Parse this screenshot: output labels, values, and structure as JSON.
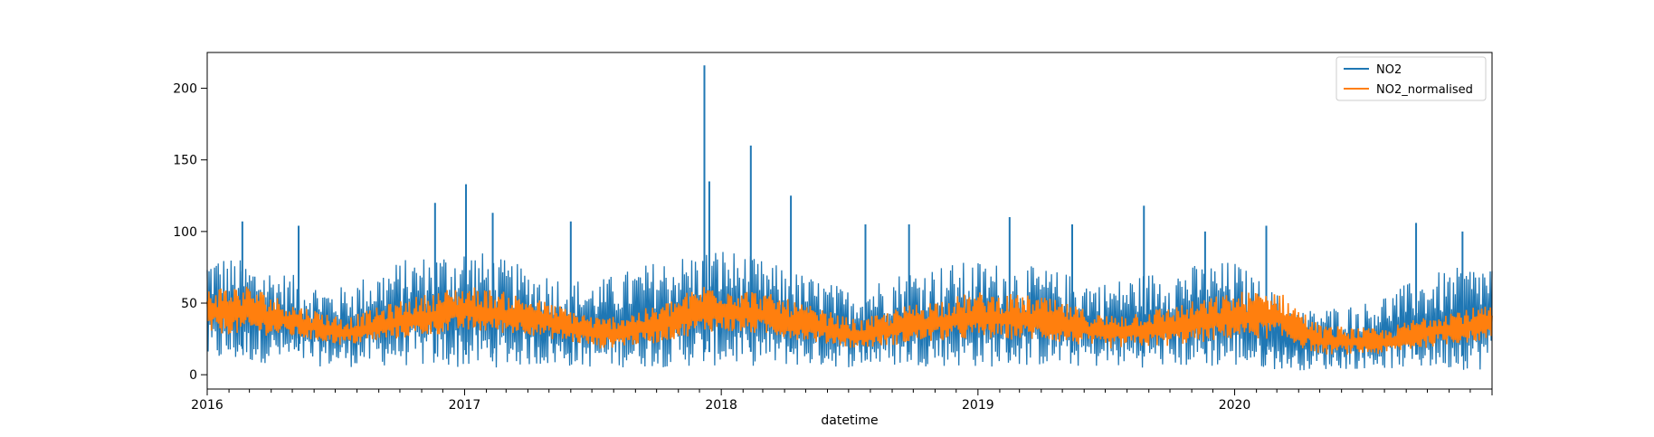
{
  "chart_data": {
    "type": "line",
    "title": "",
    "xlabel": "datetime",
    "ylabel": "",
    "xlim": [
      "2016-01-01",
      "2021-01-01"
    ],
    "ylim": [
      -10,
      225
    ],
    "x_tick_labels": [
      "2016",
      "2017",
      "2018",
      "2019",
      "2020"
    ],
    "x_ticks": [
      "2016-01-01",
      "2017-01-01",
      "2018-01-01",
      "2019-01-01",
      "2020-01-01"
    ],
    "y_ticks": [
      0,
      50,
      100,
      150,
      200
    ],
    "grid": false,
    "legend": "top-right",
    "series": [
      {
        "name": "NO2",
        "color": "#1f77b4",
        "envelope_lower": [
          {
            "x": "2016-01-15",
            "y": 8
          },
          {
            "x": "2016-04-01",
            "y": 8
          },
          {
            "x": "2016-07-01",
            "y": 5
          },
          {
            "x": "2016-10-01",
            "y": 6
          },
          {
            "x": "2017-01-01",
            "y": 4
          },
          {
            "x": "2017-04-01",
            "y": 6
          },
          {
            "x": "2017-07-01",
            "y": 5
          },
          {
            "x": "2017-10-01",
            "y": 5
          },
          {
            "x": "2018-01-01",
            "y": 6
          },
          {
            "x": "2018-04-01",
            "y": 6
          },
          {
            "x": "2018-07-01",
            "y": 5
          },
          {
            "x": "2018-10-01",
            "y": 6
          },
          {
            "x": "2019-01-01",
            "y": 5
          },
          {
            "x": "2019-04-01",
            "y": 6
          },
          {
            "x": "2019-07-01",
            "y": 5
          },
          {
            "x": "2019-10-01",
            "y": 5
          },
          {
            "x": "2020-01-01",
            "y": 5
          },
          {
            "x": "2020-04-01",
            "y": 3
          },
          {
            "x": "2020-07-01",
            "y": 4
          },
          {
            "x": "2020-10-01",
            "y": 4
          },
          {
            "x": "2020-12-31",
            "y": 3
          }
        ],
        "envelope_upper": [
          {
            "x": "2016-01-15",
            "y": 85
          },
          {
            "x": "2016-04-01",
            "y": 75
          },
          {
            "x": "2016-07-01",
            "y": 60
          },
          {
            "x": "2016-10-01",
            "y": 80
          },
          {
            "x": "2017-01-01",
            "y": 90
          },
          {
            "x": "2017-04-01",
            "y": 75
          },
          {
            "x": "2017-07-01",
            "y": 65
          },
          {
            "x": "2017-10-01",
            "y": 80
          },
          {
            "x": "2018-01-01",
            "y": 90
          },
          {
            "x": "2018-04-01",
            "y": 75
          },
          {
            "x": "2018-07-01",
            "y": 60
          },
          {
            "x": "2018-10-01",
            "y": 75
          },
          {
            "x": "2019-01-01",
            "y": 80
          },
          {
            "x": "2019-04-01",
            "y": 75
          },
          {
            "x": "2019-07-01",
            "y": 65
          },
          {
            "x": "2019-10-01",
            "y": 75
          },
          {
            "x": "2020-01-01",
            "y": 80
          },
          {
            "x": "2020-04-01",
            "y": 45
          },
          {
            "x": "2020-07-01",
            "y": 50
          },
          {
            "x": "2020-10-01",
            "y": 70
          },
          {
            "x": "2020-12-31",
            "y": 80
          }
        ],
        "peaks": [
          {
            "x": "2016-02-20",
            "y": 107
          },
          {
            "x": "2016-05-10",
            "y": 104
          },
          {
            "x": "2016-11-20",
            "y": 120
          },
          {
            "x": "2017-01-03",
            "y": 133
          },
          {
            "x": "2017-02-10",
            "y": 113
          },
          {
            "x": "2017-06-01",
            "y": 107
          },
          {
            "x": "2017-12-08",
            "y": 216
          },
          {
            "x": "2017-12-15",
            "y": 135
          },
          {
            "x": "2018-02-12",
            "y": 160
          },
          {
            "x": "2018-04-10",
            "y": 125
          },
          {
            "x": "2018-07-25",
            "y": 105
          },
          {
            "x": "2018-09-25",
            "y": 105
          },
          {
            "x": "2019-02-15",
            "y": 110
          },
          {
            "x": "2019-05-15",
            "y": 105
          },
          {
            "x": "2019-08-25",
            "y": 118
          },
          {
            "x": "2019-11-20",
            "y": 100
          },
          {
            "x": "2020-02-15",
            "y": 104
          },
          {
            "x": "2020-09-15",
            "y": 106
          },
          {
            "x": "2020-11-20",
            "y": 100
          }
        ]
      },
      {
        "name": "NO2_normalised",
        "color": "#ff7f0e",
        "envelope_lower": [
          {
            "x": "2016-01-01",
            "y": 28
          },
          {
            "x": "2016-03-01",
            "y": 28
          },
          {
            "x": "2016-05-01",
            "y": 26
          },
          {
            "x": "2016-07-15",
            "y": 20
          },
          {
            "x": "2016-10-01",
            "y": 25
          },
          {
            "x": "2017-01-01",
            "y": 30
          },
          {
            "x": "2017-04-01",
            "y": 28
          },
          {
            "x": "2017-07-15",
            "y": 18
          },
          {
            "x": "2017-10-01",
            "y": 22
          },
          {
            "x": "2017-12-15",
            "y": 30
          },
          {
            "x": "2018-03-01",
            "y": 28
          },
          {
            "x": "2018-07-15",
            "y": 18
          },
          {
            "x": "2018-10-01",
            "y": 22
          },
          {
            "x": "2019-01-01",
            "y": 25
          },
          {
            "x": "2019-04-01",
            "y": 24
          },
          {
            "x": "2019-07-01",
            "y": 18
          },
          {
            "x": "2019-10-01",
            "y": 20
          },
          {
            "x": "2020-01-01",
            "y": 25
          },
          {
            "x": "2020-03-01",
            "y": 25
          },
          {
            "x": "2020-05-01",
            "y": 14
          },
          {
            "x": "2020-08-01",
            "y": 14
          },
          {
            "x": "2020-10-15",
            "y": 20
          },
          {
            "x": "2020-12-31",
            "y": 24
          }
        ],
        "envelope_upper": [
          {
            "x": "2016-01-01",
            "y": 62
          },
          {
            "x": "2016-03-01",
            "y": 63
          },
          {
            "x": "2016-05-01",
            "y": 50
          },
          {
            "x": "2016-07-15",
            "y": 40
          },
          {
            "x": "2016-10-01",
            "y": 52
          },
          {
            "x": "2017-01-01",
            "y": 63
          },
          {
            "x": "2017-04-01",
            "y": 55
          },
          {
            "x": "2017-07-15",
            "y": 40
          },
          {
            "x": "2017-10-01",
            "y": 48
          },
          {
            "x": "2017-12-15",
            "y": 65
          },
          {
            "x": "2018-03-01",
            "y": 58
          },
          {
            "x": "2018-07-15",
            "y": 38
          },
          {
            "x": "2018-10-01",
            "y": 50
          },
          {
            "x": "2019-01-01",
            "y": 58
          },
          {
            "x": "2019-04-01",
            "y": 55
          },
          {
            "x": "2019-07-01",
            "y": 42
          },
          {
            "x": "2019-10-01",
            "y": 48
          },
          {
            "x": "2020-01-01",
            "y": 58
          },
          {
            "x": "2020-03-01",
            "y": 60
          },
          {
            "x": "2020-05-01",
            "y": 35
          },
          {
            "x": "2020-08-01",
            "y": 32
          },
          {
            "x": "2020-10-15",
            "y": 45
          },
          {
            "x": "2020-12-31",
            "y": 48
          }
        ]
      }
    ]
  }
}
